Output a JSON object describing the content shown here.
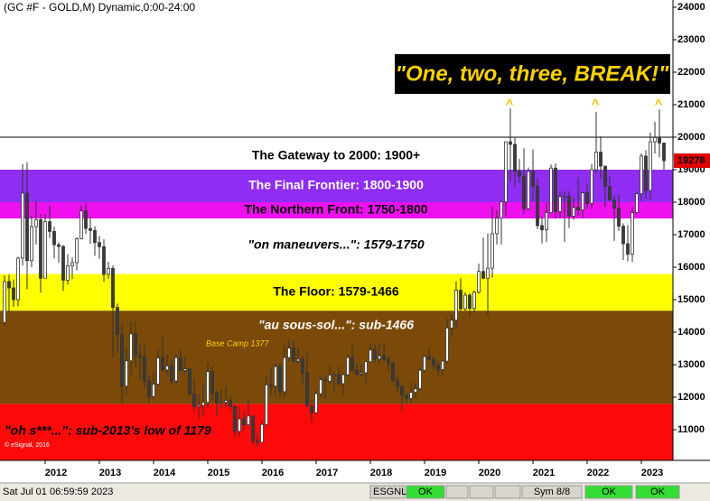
{
  "chart_data": {
    "type": "candlestick",
    "title": "(GC #F - GOLD,M) Dynamic,0:00-24:00",
    "ylim": [
      10056,
      24222
    ],
    "yticks": [
      11000,
      12000,
      13000,
      14000,
      15000,
      16000,
      17000,
      18000,
      19000,
      20000,
      21000,
      22000,
      23000,
      24000
    ],
    "x_labels": [
      "2012",
      "2013",
      "2014",
      "2015",
      "2016",
      "2017",
      "2018",
      "2019",
      "2020",
      "2021",
      "2022",
      "2023"
    ],
    "up_color": "#ffffff",
    "down_color": "#3a3a3a",
    "wick_color": "#333333",
    "bands": [
      {
        "from": 19000,
        "to": 20000,
        "color": "#ffffff",
        "text_color": "#000000",
        "label": "The Gateway to 2000:  1900+"
      },
      {
        "from": 18000,
        "to": 19000,
        "color": "#8f2df2",
        "text_color": "#ffffff",
        "label": "The Final Frontier:  1800-1900"
      },
      {
        "from": 17500,
        "to": 18000,
        "color": "#ee10ee",
        "text_color": "#000000",
        "label": "The Northern Front:  1750-1800"
      },
      {
        "from": 15790,
        "to": 17500,
        "color": "#ffffff",
        "text_color": "#000000",
        "label": "\"on maneuvers...\":  1579-1750"
      },
      {
        "from": 14660,
        "to": 15790,
        "color": "#ffff00",
        "text_color": "#000000",
        "label": "The Floor:  1579-1466"
      },
      {
        "from": 11790,
        "to": 14660,
        "color": "#7b4a08",
        "text_color": "#ffffff",
        "label": "\"au sous-sol...\":  sub-1466"
      },
      {
        "from": 10056,
        "to": 11790,
        "color": "#ff0a0a",
        "text_color": "#000000",
        "label": "\"oh s***...\":  sub-2013's low of 1179"
      }
    ],
    "annotation": "\"One, two, three, BREAK!\"",
    "peak_marker": "^",
    "base_camp": "Base Camp 1377",
    "copyright": "© eSignal, 2016",
    "open": [
      14300,
      15560,
      15360,
      15000,
      16280,
      18280,
      16200,
      17250,
      17460,
      15660,
      17400,
      17100,
      16690,
      16640,
      15600,
      16040,
      16140,
      16870,
      17730,
      17190,
      17130,
      16760,
      16630,
      15780,
      15960,
      14760,
      13930,
      12340,
      13120,
      13950,
      13270,
      13230,
      12500,
      12020,
      12400,
      13210,
      12840,
      12960,
      12500,
      13220,
      12820,
      12870,
      12100,
      11710,
      11750,
      11840,
      12790,
      12130,
      11830,
      11840,
      11900,
      11720,
      10950,
      11330,
      11150,
      11420,
      10650,
      10610,
      11160,
      12380,
      12340,
      12940,
      12170,
      13220,
      13510,
      13110,
      13170,
      12760,
      11730,
      11520,
      12110,
      12540,
      12490,
      12680,
      12690,
      12420,
      12690,
      13220,
      12830,
      12710,
      12750,
      13090,
      13450,
      13180,
      13270,
      13160,
      13050,
      12530,
      12330,
      12060,
      11960,
      12150,
      12260,
      12830,
      13250,
      13160,
      12980,
      12850,
      13110,
      14130,
      14370,
      15290,
      14720,
      15140,
      14730,
      15230,
      15870,
      15660,
      15970,
      17030,
      17510,
      18010,
      19860,
      19780,
      18950,
      18800,
      17800,
      18950,
      18500,
      17280,
      17150,
      17680,
      19050,
      17710,
      18170,
      18180,
      17570,
      17840,
      17760,
      18290,
      17960,
      19000,
      19540,
      19110,
      18480,
      18070,
      17810,
      17260,
      16720,
      16400,
      17680,
      18260,
      19420,
      18360,
      19860,
      19990,
      19820
    ],
    "high": [
      15750,
      15770,
      15620,
      16320,
      19170,
      19230,
      17600,
      18040,
      17640,
      17630,
      17900,
      17250,
      16760,
      16680,
      16400,
      16300,
      16920,
      17900,
      17980,
      17550,
      17260,
      16960,
      16860,
      16170,
      16060,
      14880,
      14240,
      13480,
      14330,
      14340,
      13610,
      13610,
      12670,
      12800,
      13450,
      13920,
      13310,
      13150,
      13330,
      13450,
      13240,
      12910,
      12560,
      12080,
      12390,
      13070,
      12960,
      12230,
      12240,
      12320,
      12050,
      11750,
      11700,
      11570,
      11910,
      11420,
      10880,
      11280,
      12630,
      12870,
      13030,
      13060,
      13620,
      13770,
      13750,
      13520,
      13260,
      13380,
      11910,
      12210,
      12640,
      12640,
      12980,
      12750,
      12970,
      12740,
      13310,
      13620,
      13060,
      12990,
      13100,
      13660,
      13620,
      13650,
      13690,
      13270,
      13090,
      12660,
      12370,
      12140,
      12450,
      12410,
      12900,
      13310,
      13490,
      13240,
      13100,
      13130,
      14420,
      14530,
      15560,
      15660,
      15230,
      15190,
      15280,
      16110,
      16910,
      17040,
      17880,
      17750,
      18020,
      19860,
      20890,
      20010,
      19330,
      19660,
      19070,
      19620,
      18730,
      17550,
      17980,
      19160,
      19190,
      18340,
      18340,
      18340,
      18140,
      18770,
      18310,
      18530,
      19170,
      20780,
      20030,
      19110,
      18800,
      18200,
      18240,
      17350,
      17300,
      17860,
      18330,
      19500,
      19600,
      20140,
      20480,
      20850,
      19830
    ],
    "low": [
      14200,
      14620,
      14780,
      14800,
      16050,
      15320,
      16000,
      16700,
      15220,
      15660,
      16900,
      16270,
      16140,
      15270,
      15470,
      15640,
      15900,
      16870,
      17020,
      16720,
      16350,
      16260,
      15550,
      15650,
      13210,
      13380,
      11800,
      12080,
      12700,
      12920,
      12510,
      12270,
      11820,
      11950,
      12380,
      12770,
      12680,
      12400,
      12410,
      12810,
      12730,
      12050,
      11600,
      11310,
      11420,
      11670,
      11900,
      11420,
      11660,
      11700,
      11620,
      10770,
      10800,
      11000,
      11120,
      10530,
      10460,
      10620,
      11110,
      12060,
      12080,
      12000,
      12000,
      13100,
      13050,
      13050,
      12410,
      11710,
      11240,
      11470,
      11990,
      11950,
      12440,
      12140,
      12370,
      12050,
      12650,
      12780,
      12600,
      12640,
      12360,
      13050,
      13070,
      13030,
      13100,
      12820,
      12460,
      12110,
      11600,
      11800,
      11830,
      11960,
      12210,
      12760,
      13110,
      12810,
      12660,
      12670,
      13010,
      13850,
      14120,
      14650,
      14660,
      14460,
      14600,
      15180,
      15630,
      14510,
      15680,
      16700,
      16700,
      17570,
      18630,
      18490,
      18590,
      17640,
      17760,
      18030,
      17170,
      16730,
      16770,
      17650,
      17500,
      17500,
      16770,
      17210,
      17460,
      17590,
      17520,
      17800,
      17800,
      18900,
      18720,
      17860,
      18050,
      16810,
      17110,
      16220,
      16180,
      16160,
      17650,
      18040,
      18100,
      18090,
      19500,
      19380,
      19000
    ],
    "close": [
      15560,
      15360,
      15000,
      16280,
      18280,
      16200,
      17250,
      17460,
      15660,
      17400,
      17100,
      16690,
      16640,
      15600,
      16040,
      16140,
      16870,
      17730,
      17190,
      17130,
      16760,
      16630,
      15780,
      15960,
      14760,
      13930,
      12340,
      13120,
      13950,
      13270,
      13230,
      12500,
      12020,
      12400,
      13210,
      12840,
      12960,
      12500,
      13220,
      12820,
      12870,
      12100,
      11710,
      11750,
      11840,
      12790,
      12130,
      11830,
      11840,
      11900,
      11720,
      10950,
      11330,
      11150,
      11420,
      10650,
      10610,
      11160,
      12380,
      12340,
      12940,
      12170,
      13220,
      13510,
      13110,
      13170,
      12760,
      11730,
      11520,
      12110,
      12540,
      12490,
      12680,
      12690,
      12420,
      12690,
      13220,
      12830,
      12710,
      12750,
      13090,
      13450,
      13180,
      13270,
      13160,
      13050,
      12530,
      12330,
      12060,
      11960,
      12150,
      12260,
      12830,
      13250,
      13160,
      12980,
      12850,
      13110,
      14130,
      14370,
      15290,
      14720,
      15140,
      14730,
      15230,
      15870,
      15660,
      15970,
      17030,
      17510,
      18010,
      19860,
      19780,
      18950,
      18800,
      17800,
      18950,
      18500,
      17280,
      17150,
      17680,
      19050,
      17710,
      18170,
      18180,
      17570,
      17840,
      17760,
      18290,
      17960,
      19000,
      19540,
      19110,
      18480,
      18070,
      17810,
      17260,
      16720,
      16400,
      17680,
      18260,
      19420,
      18360,
      19860,
      19990,
      19820,
      19278
    ]
  },
  "status_bar": {
    "datetime": "Sat Jul 01 06:59:59 2023",
    "feed": "ESGNL:",
    "feed_status": "OK",
    "symbols": "Sym 8/8",
    "status_2": "OK",
    "status_3": "OK"
  }
}
